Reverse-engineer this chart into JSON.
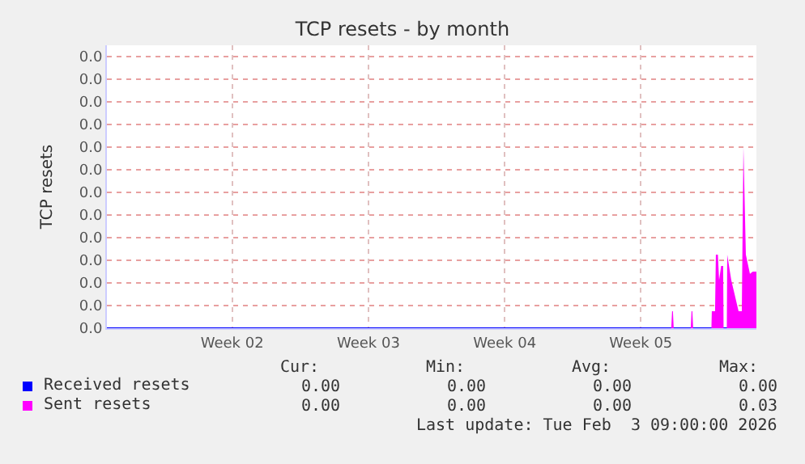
{
  "chart_data": {
    "type": "area",
    "title": "TCP resets - by month",
    "ylabel": "TCP resets",
    "xlim": [
      "2026-01-01T00:00",
      "2026-02-03T09:00"
    ],
    "xticks": [
      {
        "value": "2026-01-07T10:30",
        "label": "Week 02"
      },
      {
        "value": "2026-01-14T10:30",
        "label": "Week 03"
      },
      {
        "value": "2026-01-21T10:30",
        "label": "Week 04"
      },
      {
        "value": "2026-01-28T10:30",
        "label": "Week 05"
      }
    ],
    "ylim": [
      0,
      0.05
    ],
    "yticks": [
      {
        "value": 0,
        "label": "0.0"
      },
      {
        "value": 0.004,
        "label": "0.0"
      },
      {
        "value": 0.008,
        "label": "0.0"
      },
      {
        "value": 0.012,
        "label": "0.0"
      },
      {
        "value": 0.016,
        "label": "0.0"
      },
      {
        "value": 0.02,
        "label": "0.0"
      },
      {
        "value": 0.024,
        "label": "0.0"
      },
      {
        "value": 0.028,
        "label": "0.0"
      },
      {
        "value": 0.032,
        "label": "0.0"
      },
      {
        "value": 0.036,
        "label": "0.0"
      },
      {
        "value": 0.04,
        "label": "0.0"
      },
      {
        "value": 0.044,
        "label": "0.0"
      },
      {
        "value": 0.048,
        "label": "0.0"
      }
    ],
    "grid": true,
    "legend": "bottom left",
    "series": [
      {
        "name": "Received resets",
        "type": "line",
        "color": "#0000ff",
        "x": [
          "2026-01-01T00:00",
          "2026-02-03T09:00"
        ],
        "values": [
          0,
          0
        ]
      },
      {
        "name": "Sent resets",
        "color": "#ff00ff",
        "x": [
          "2026-01-30T00:00",
          "2026-01-30T01:00",
          "2026-01-30T02:00",
          "2026-01-30T03:00",
          "2026-01-31T00:00",
          "2026-01-31T01:00",
          "2026-01-31T02:00",
          "2026-01-31T03:00",
          "2026-02-01T01:30",
          "2026-02-01T02:00",
          "2026-02-01T06:00",
          "2026-02-01T07:00",
          "2026-02-01T09:30",
          "2026-02-01T11:00",
          "2026-02-01T13:30",
          "2026-02-01T16:00",
          "2026-02-01T16:30",
          "2026-02-01T20:30",
          "2026-02-01T21:00",
          "2026-02-02T02:00",
          "2026-02-02T11:00",
          "2026-02-02T15:00",
          "2026-02-02T17:00",
          "2026-02-02T20:00",
          "2026-02-03T01:00",
          "2026-02-03T04:30",
          "2026-02-03T09:00"
        ],
        "values": [
          0,
          0.003,
          0.003,
          0,
          0,
          0.003,
          0.003,
          0,
          0,
          0.003,
          0.003,
          0.013,
          0.013,
          0.0085,
          0.011,
          0.011,
          0,
          0,
          0.013,
          0.0085,
          0.003,
          0.003,
          0.032,
          0.013,
          0.0096,
          0.01,
          0.01
        ]
      }
    ],
    "annotations": [
      "Cur:",
      "Min:",
      "Avg:",
      "Max:",
      "0.00",
      "0.00",
      "0.00",
      "0.00",
      "0.00",
      "0.00",
      "0.00",
      "0.03",
      "Last update: Tue Feb  3 09:00:00 2026"
    ]
  }
}
